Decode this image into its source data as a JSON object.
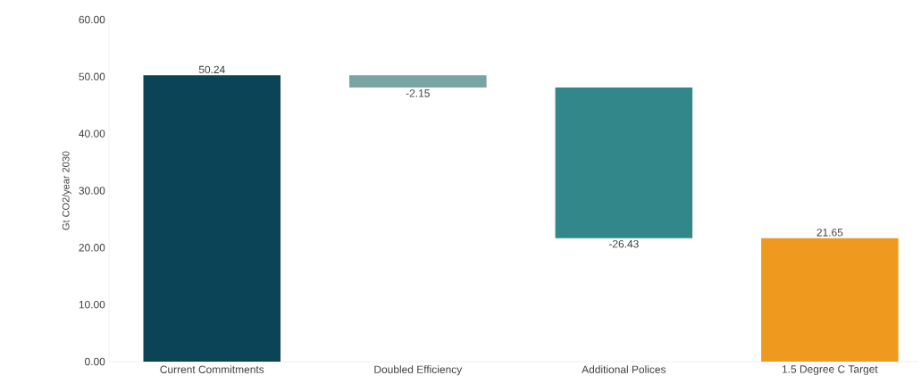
{
  "chart_data": {
    "type": "bar",
    "ylabel": "Gt CO2/year 2030",
    "categories": [
      "Current Commitments",
      "Doubled Efficiency",
      "Additional Polices",
      "1.5 Degree C Target"
    ],
    "values": [
      50.24,
      -2.15,
      -26.43,
      21.65
    ],
    "base": [
      0,
      50.24,
      48.09,
      0
    ],
    "colors": [
      "#0b4357",
      "#7aa3a3",
      "#31878a",
      "#f0991f"
    ],
    "value_labels": [
      "50.24",
      "-2.15",
      "-26.43",
      "21.65"
    ],
    "ylim": [
      0,
      60
    ],
    "yticks": [
      {
        "value": 0,
        "label": "0.00"
      },
      {
        "value": 10,
        "label": "10.00"
      },
      {
        "value": 20,
        "label": "20.00"
      },
      {
        "value": 30,
        "label": "30.00"
      },
      {
        "value": 40,
        "label": "40.00"
      },
      {
        "value": 50,
        "label": "50.00"
      },
      {
        "value": 60,
        "label": "60.00"
      }
    ],
    "grid": false
  }
}
